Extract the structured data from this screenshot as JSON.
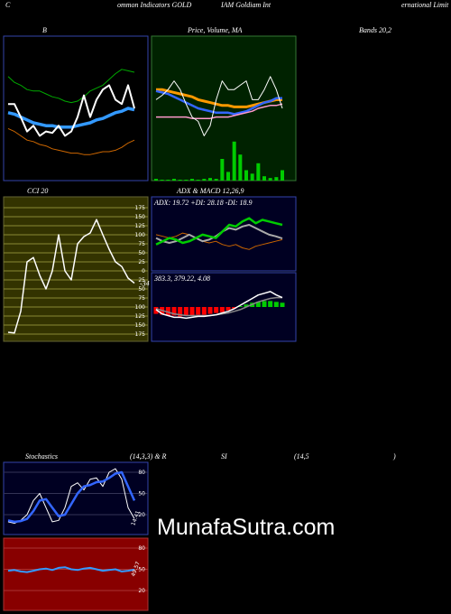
{
  "header": [
    "C",
    "ommon Indicators GOLD",
    "IAM Goldiam Int",
    "ernational Limit"
  ],
  "row_labels": {
    "bands": "Bands 20,2",
    "stoch": [
      "(14,3,3) & R",
      "SI",
      "(14,5",
      ")"
    ]
  },
  "watermark": "MunafaSutra.com",
  "chart_data": [
    {
      "type": "line",
      "title": "B",
      "background": "#000000",
      "ylim": [
        0,
        100
      ],
      "series": [
        {
          "color": "#00aa00",
          "width": 1,
          "values": [
            72,
            68,
            66,
            63,
            62,
            62,
            60,
            58,
            57,
            55,
            54,
            55,
            58,
            62,
            64,
            66,
            70,
            74,
            77,
            76,
            75
          ]
        },
        {
          "color": "#cc6600",
          "width": 1,
          "values": [
            36,
            34,
            31,
            28,
            27,
            25,
            24,
            22,
            21,
            20,
            19,
            19,
            18,
            18,
            19,
            20,
            20,
            21,
            23,
            26,
            28
          ]
        },
        {
          "color": "#3399ff",
          "width": 3.5,
          "values": [
            47,
            46,
            44,
            42,
            40,
            39,
            38,
            38,
            37,
            37,
            37,
            38,
            39,
            40,
            42,
            43,
            45,
            47,
            48,
            50,
            49
          ]
        },
        {
          "color": "#ffffff",
          "width": 2,
          "values": [
            53,
            53,
            44,
            34,
            38,
            31,
            34,
            33,
            38,
            31,
            34,
            44,
            59,
            44,
            56,
            63,
            66,
            56,
            53,
            66,
            50
          ]
        }
      ]
    },
    {
      "type": "line",
      "title": "Price,  Volume, MA",
      "background": "#002200",
      "ylim": [
        0,
        100
      ],
      "volumes": [
        2,
        1,
        1,
        2,
        1,
        1,
        2,
        1,
        2,
        3,
        2,
        25,
        10,
        45,
        30,
        12,
        8,
        20,
        5,
        3,
        4,
        12
      ],
      "volume_color": "#00cc00",
      "vlim": [
        0,
        100
      ],
      "series": [
        {
          "color": "#ff9900",
          "width": 3,
          "values": [
            63,
            63,
            62,
            61,
            60,
            59,
            58,
            56,
            55,
            54,
            53,
            52,
            52,
            51,
            51,
            51,
            52,
            53,
            54,
            55,
            56,
            56
          ]
        },
        {
          "color": "#3366ff",
          "width": 2.5,
          "values": [
            62,
            61,
            60,
            58,
            56,
            54,
            52,
            50,
            49,
            48,
            47,
            47,
            47,
            46,
            47,
            48,
            50,
            52,
            54,
            55,
            57,
            57
          ]
        },
        {
          "color": "#ff99cc",
          "width": 1.5,
          "values": [
            44,
            44,
            44,
            44,
            44,
            44,
            43,
            43,
            43,
            43,
            44,
            44,
            44,
            45,
            46,
            47,
            48,
            50,
            51,
            52,
            52,
            53
          ]
        },
        {
          "color": "#ffffff",
          "width": 1,
          "values": [
            56,
            59,
            63,
            69,
            63,
            53,
            44,
            41,
            31,
            38,
            56,
            69,
            63,
            63,
            66,
            69,
            56,
            56,
            63,
            72,
            63,
            50
          ]
        }
      ]
    },
    {
      "type": "line",
      "title": "CCI 20",
      "background": "#333300",
      "grid": true,
      "grid_color": "#888833",
      "ylim": [
        -195,
        205
      ],
      "yticks": [
        175,
        150,
        125,
        100,
        75,
        50,
        25,
        0,
        {
          "value": -25,
          "label": "25"
        },
        {
          "value": -50,
          "label": "50"
        },
        {
          "value": -75,
          "label": "75"
        },
        {
          "value": -100,
          "label": "100"
        },
        {
          "value": -125,
          "label": "125"
        },
        {
          "value": -150,
          "label": "150"
        },
        {
          "value": -175,
          "label": "175"
        }
      ],
      "series": [
        {
          "color": "#ffffff",
          "width": 1.5,
          "values": [
            -170,
            -172,
            -112,
            25,
            37,
            -12,
            -50,
            0,
            100,
            0,
            -25,
            75,
            95,
            105,
            142,
            100,
            60,
            25,
            12,
            -20,
            -34
          ]
        }
      ]
    },
    {
      "type": "line",
      "title": "ADX  & MACD 12,26,9",
      "legend": "ADX: 19.72  +DI: 28.18  -DI: 18.9",
      "background": "#000022",
      "ylim": [
        0,
        45
      ],
      "series": [
        {
          "color": "#cc6600",
          "width": 1,
          "values": [
            22,
            21,
            20,
            21,
            23,
            22,
            20,
            18,
            17,
            18,
            16,
            15,
            16,
            14,
            13,
            15,
            16,
            17,
            18,
            19
          ]
        },
        {
          "color": "#aaaaaa",
          "width": 2,
          "values": [
            20,
            18,
            17,
            18,
            20,
            22,
            20,
            18,
            19,
            21,
            24,
            26,
            25,
            27,
            28,
            26,
            24,
            22,
            21,
            19.72
          ]
        },
        {
          "color": "#00cc00",
          "width": 2.5,
          "values": [
            16,
            18,
            20,
            19,
            17,
            18,
            20,
            22,
            21,
            20,
            24,
            28,
            27,
            30,
            32,
            29,
            31,
            30,
            29,
            28
          ]
        }
      ]
    },
    {
      "type": "line",
      "legend": "383.3, 379.22, 4.08",
      "background": "#000022",
      "ylim": [
        -40,
        40
      ],
      "histogram": [
        -8,
        -9,
        -10,
        -10,
        -11,
        -10,
        -10,
        -9,
        -9,
        -8,
        -7,
        -6,
        -4,
        -2,
        1,
        3,
        5,
        6,
        7,
        7,
        6,
        5
      ],
      "up_color": "#00cc00",
      "down_color": "#ff0000",
      "series": [
        {
          "color": "#888888",
          "width": 1.5,
          "values": [
            -2,
            -4,
            -6,
            -8,
            -9,
            -10,
            -10,
            -10,
            -10,
            -10,
            -9,
            -8,
            -7,
            -5,
            -3,
            0,
            3,
            6,
            8,
            10,
            11,
            11
          ]
        },
        {
          "color": "#ffffff",
          "width": 1.5,
          "values": [
            -3,
            -8,
            -10,
            -12,
            -12,
            -13,
            -12,
            -11,
            -11,
            -10,
            -9,
            -7,
            -5,
            -2,
            2,
            6,
            10,
            14,
            16,
            18,
            14,
            11
          ]
        }
      ]
    },
    {
      "type": "line",
      "title": "Stochastics",
      "background": "#000022",
      "grid": true,
      "grid_color": "#333355",
      "ylim": [
        -8,
        94
      ],
      "yticks": [
        80,
        50,
        20
      ],
      "series": [
        {
          "color": "#ffffff",
          "width": 1,
          "values": [
            10,
            8,
            12,
            20,
            40,
            50,
            30,
            10,
            12,
            30,
            60,
            65,
            55,
            70,
            72,
            60,
            80,
            85,
            70,
            30,
            14.41
          ]
        },
        {
          "color": "#3366ff",
          "width": 2.5,
          "values": [
            12,
            10,
            11,
            14,
            25,
            40,
            42,
            30,
            18,
            20,
            35,
            50,
            60,
            62,
            66,
            67,
            72,
            78,
            80,
            60,
            40
          ]
        }
      ],
      "last_label_series": 0
    },
    {
      "type": "line",
      "background": "#880000",
      "grid": true,
      "grid_color": "#aa3333",
      "ylim": [
        -8,
        94
      ],
      "yticks": [
        80,
        50,
        20
      ],
      "series": [
        {
          "color": "#3399ff",
          "width": 2,
          "values": [
            48,
            49,
            47,
            46,
            48,
            50,
            51,
            49,
            52,
            53,
            50,
            49,
            51,
            52,
            50,
            48,
            49,
            50,
            47,
            48,
            49.57
          ]
        }
      ],
      "last_label_series": 0
    }
  ]
}
